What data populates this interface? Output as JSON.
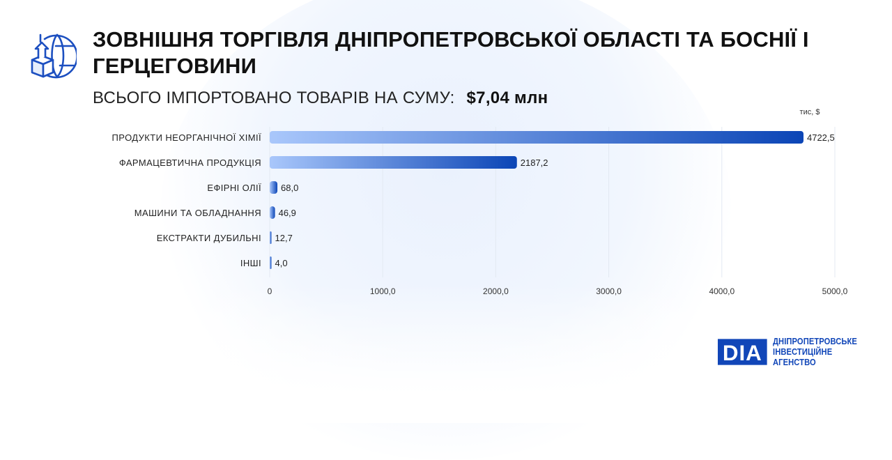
{
  "header": {
    "title": "ЗОВНІШНЯ ТОРГІВЛЯ ДНІПРОПЕТРОВСЬКОЇ ОБЛАСТІ ТА БОСНІЇ І ГЕРЦЕГОВИНИ",
    "subtitle": "ВСЬОГО ІМПОРТОВАНО ТОВАРІВ НА СУМУ:",
    "total": "$7,04 млн",
    "icon": "globe-box-upload-icon"
  },
  "chart_data": {
    "type": "bar",
    "orientation": "horizontal",
    "unit_label": "тис, $",
    "categories": [
      "ПРОДУКТИ НЕОРГАНІЧНОЇ ХІМІЇ",
      "ФАРМАЦЕВТИЧНА ПРОДУКЦІЯ",
      "ЕФІРНІ ОЛІЇ",
      "МАШИНИ ТА ОБЛАДНАННЯ",
      "ЕКСТРАКТИ ДУБИЛЬНІ",
      "ІНШІ"
    ],
    "values": [
      4722.5,
      2187.2,
      68.0,
      46.9,
      12.7,
      4.0
    ],
    "value_labels": [
      "4722,5",
      "2187,2",
      "68,0",
      "46,9",
      "12,7",
      "4,0"
    ],
    "xlim": [
      0,
      5000
    ],
    "xticks": [
      0,
      1000,
      2000,
      3000,
      4000,
      5000
    ],
    "xtick_labels": [
      "0",
      "1000,0",
      "2000,0",
      "3000,0",
      "4000,0",
      "5000,0"
    ],
    "grid": true,
    "colors": {
      "bar_start": "#a9c7fb",
      "bar_end": "#0b45b6",
      "grid": "#e3e9f2"
    }
  },
  "logo": {
    "mark": "DIA",
    "line1": "ДНІПРОПЕТРОВСЬКЕ",
    "line2": "ІНВЕСТИЦІЙНЕ АГЕНСТВО",
    "color": "#1146b8"
  }
}
